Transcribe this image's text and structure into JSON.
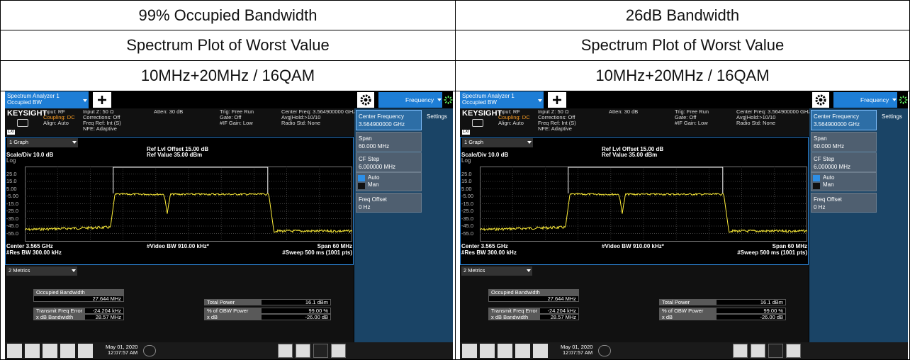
{
  "columns": [
    {
      "title": "99% Occupied Bandwidth",
      "subtitle": "Spectrum Plot of Worst Value",
      "config": "10MHz+20MHz / 16QAM",
      "screen": {
        "tab": [
          "Spectrum Analyzer 1",
          "Occupied BW"
        ],
        "menu": "Frequency",
        "brand": "KEYSIGHT",
        "lxi": "LXI",
        "status": [
          [
            "Input: RF",
            "Coupling: DC",
            "Align: Auto"
          ],
          [
            "Input Z: 50 Ω",
            "Corrections: Off",
            "Freq Ref: Int (S)",
            "NFE: Adaptive"
          ],
          [
            "Atten: 30 dB"
          ],
          [
            "Trig: Free Run",
            "Gate: Off",
            "#IF Gain: Low"
          ],
          [
            "Center Freq: 3.564900000 GHz",
            "Avg|Hold:>10/10",
            "Radio Std: None"
          ]
        ],
        "graph": {
          "selector": "1 Graph",
          "ref_offset": "Ref Lvl Offset 15.00 dB",
          "ref_value": "Ref Value 35.00 dBm",
          "scale": "Scale/Div 10.0 dB",
          "log": "Log",
          "y_labels": [
            "25.0",
            "15.0",
            "5.00",
            "-5.00",
            "-15.0",
            "-25.0",
            "-35.0",
            "-45.0",
            "-55.0"
          ],
          "center": "Center 3.565 GHz",
          "vbw": "#Video BW 910.00 kHz*",
          "span": "Span 60 MHz",
          "rbw": "#Res BW 300.00 kHz",
          "sweep": "#Sweep 500 ms (1001 pts)"
        },
        "metrics": {
          "selector": "2 Metrics",
          "obw_label": "Occupied Bandwidth",
          "obw_value": "27.644 MHz",
          "left": [
            [
              "Transmit Freq Error",
              "-24.204 kHz"
            ],
            [
              "x dB Bandwidth",
              "28.57 MHz"
            ]
          ],
          "right": [
            [
              "Total Power",
              "16.1 dBm"
            ],
            [
              "% of OBW Power",
              "99.00 %"
            ],
            [
              "x dB",
              "-26.00 dB"
            ]
          ]
        },
        "softkeys": {
          "center": [
            "Center Frequency",
            "3.564900000 GHz"
          ],
          "span": [
            "Span",
            "60.000 MHz"
          ],
          "cfstep": [
            "CF Step",
            "6.000000 MHz"
          ],
          "auto": "Auto",
          "man": "Man",
          "offset": [
            "Freq Offset",
            "0 Hz"
          ],
          "settings": "Settings"
        },
        "date": "May 01, 2020",
        "time": "12:07:57 AM"
      }
    },
    {
      "title": "26dB Bandwidth",
      "subtitle": "Spectrum Plot of Worst Value",
      "config": "10MHz+20MHz / 16QAM",
      "screen": {
        "tab": [
          "Spectrum Analyzer 1",
          "Occupied BW"
        ],
        "menu": "Frequency",
        "brand": "KEYSIGHT",
        "lxi": "LXI",
        "status": [
          [
            "Input: RF",
            "Coupling: DC",
            "Align: Auto"
          ],
          [
            "Input Z: 50 Ω",
            "Corrections: Off",
            "Freq Ref: Int (S)",
            "NFE: Adaptive"
          ],
          [
            "Atten: 30 dB"
          ],
          [
            "Trig: Free Run",
            "Gate: Off",
            "#IF Gain: Low"
          ],
          [
            "Center Freq: 3.564900000 GHz",
            "Avg|Hold:>10/10",
            "Radio Std: None"
          ]
        ],
        "graph": {
          "selector": "1 Graph",
          "ref_offset": "Ref Lvl Offset 15.00 dB",
          "ref_value": "Ref Value 35.00 dBm",
          "scale": "Scale/Div 10.0 dB",
          "log": "Log",
          "y_labels": [
            "25.0",
            "15.0",
            "5.00",
            "-5.00",
            "-15.0",
            "-25.0",
            "-35.0",
            "-45.0",
            "-55.0"
          ],
          "center": "Center 3.565 GHz",
          "vbw": "#Video BW 910.00 kHz*",
          "span": "Span 60 MHz",
          "rbw": "#Res BW 300.00 kHz",
          "sweep": "#Sweep 500 ms (1001 pts)"
        },
        "metrics": {
          "selector": "2 Metrics",
          "obw_label": "Occupied Bandwidth",
          "obw_value": "27.644 MHz",
          "left": [
            [
              "Transmit Freq Error",
              "-24.204 kHz"
            ],
            [
              "x dB Bandwidth",
              "28.57 MHz"
            ]
          ],
          "right": [
            [
              "Total Power",
              "16.1 dBm"
            ],
            [
              "% of OBW Power",
              "99.00 %"
            ],
            [
              "x dB",
              "-26.00 dB"
            ]
          ]
        },
        "softkeys": {
          "center": [
            "Center Frequency",
            "3.564900000 GHz"
          ],
          "span": [
            "Span",
            "60.000 MHz"
          ],
          "cfstep": [
            "CF Step",
            "6.000000 MHz"
          ],
          "auto": "Auto",
          "man": "Man",
          "offset": [
            "Freq Offset",
            "0 Hz"
          ],
          "settings": "Settings"
        },
        "date": "May 01, 2020",
        "time": "12:07:57 AM"
      }
    }
  ]
}
